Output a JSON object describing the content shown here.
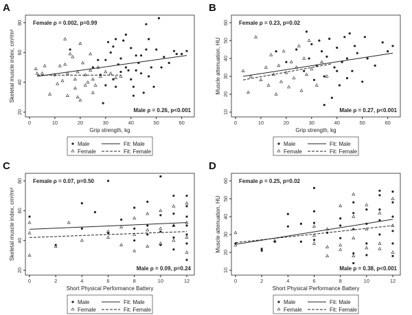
{
  "chart_data": [
    {
      "panel": "A",
      "type": "scatter",
      "xlabel": "Grip strength, kg",
      "ylabel": "Skeletal muscle index, cm²/m²",
      "xlim": [
        0,
        62
      ],
      "ylim": [
        20,
        80
      ],
      "xticks": [
        0,
        10,
        20,
        30,
        40,
        50,
        60
      ],
      "yticks": [
        20,
        40,
        60,
        80
      ],
      "female_annotation": "Female ρ = 0.002, p=0.99",
      "male_annotation": "Male ρ = 0.26, p<0.001",
      "fit_male": {
        "x": [
          3,
          62
        ],
        "y": [
          44,
          58
        ]
      },
      "fit_female": {
        "x": [
          3,
          36
        ],
        "y": [
          44.8,
          44.8
        ]
      },
      "male": [
        [
          16,
          62
        ],
        [
          25,
          50
        ],
        [
          27,
          55
        ],
        [
          29,
          26
        ],
        [
          30,
          38
        ],
        [
          31,
          67
        ],
        [
          32,
          60
        ],
        [
          33,
          64
        ],
        [
          34,
          69
        ],
        [
          35,
          52
        ],
        [
          36,
          56
        ],
        [
          37,
          68
        ],
        [
          38,
          72
        ],
        [
          39,
          48
        ],
        [
          40,
          63
        ],
        [
          41,
          31
        ],
        [
          41,
          37
        ],
        [
          42,
          58
        ],
        [
          43,
          53
        ],
        [
          44,
          46
        ],
        [
          45,
          33
        ],
        [
          46,
          79
        ],
        [
          46,
          62
        ],
        [
          47,
          69
        ],
        [
          48,
          50
        ],
        [
          49,
          37
        ],
        [
          50,
          62
        ],
        [
          51,
          83
        ],
        [
          52,
          50
        ],
        [
          53,
          57
        ],
        [
          55,
          53
        ],
        [
          57,
          61
        ],
        [
          58,
          59
        ],
        [
          60,
          59
        ],
        [
          62,
          61
        ],
        [
          28,
          45
        ],
        [
          33,
          42
        ],
        [
          36,
          47
        ],
        [
          40,
          42
        ],
        [
          44,
          58
        ],
        [
          30,
          55
        ],
        [
          34,
          37
        ],
        [
          38,
          50
        ],
        [
          42,
          48
        ],
        [
          47,
          44
        ]
      ],
      "female": [
        [
          2.5,
          49
        ],
        [
          3,
          46
        ],
        [
          5,
          46
        ],
        [
          6,
          51
        ],
        [
          8,
          32
        ],
        [
          10,
          45
        ],
        [
          11,
          39
        ],
        [
          12,
          51
        ],
        [
          13,
          41
        ],
        [
          14,
          69
        ],
        [
          14,
          52
        ],
        [
          15,
          46
        ],
        [
          15,
          31
        ],
        [
          16,
          59
        ],
        [
          17,
          57
        ],
        [
          18,
          36
        ],
        [
          19,
          30
        ],
        [
          19,
          47
        ],
        [
          20,
          66
        ],
        [
          20,
          28
        ],
        [
          21,
          53
        ],
        [
          22,
          45
        ],
        [
          23,
          40
        ],
        [
          24,
          59
        ],
        [
          25,
          42
        ],
        [
          25,
          33
        ],
        [
          26,
          38
        ],
        [
          27,
          50
        ],
        [
          28,
          44
        ],
        [
          30,
          47
        ],
        [
          32,
          46
        ],
        [
          34,
          43
        ],
        [
          36,
          44
        ],
        [
          18,
          42
        ],
        [
          22,
          38
        ],
        [
          24,
          48
        ]
      ]
    },
    {
      "panel": "B",
      "type": "scatter",
      "xlabel": "Grip strength, kg",
      "ylabel": "Muscle attenuation, HU",
      "xlim": [
        0,
        62
      ],
      "ylim": [
        10,
        60
      ],
      "xticks": [
        0,
        10,
        20,
        30,
        40,
        50,
        60
      ],
      "yticks": [
        10,
        20,
        30,
        40,
        50,
        60
      ],
      "female_annotation": "Female ρ = 0.23, p=0.02",
      "male_annotation": "Male ρ = 0.27, p<0.001",
      "fit_male": {
        "x": [
          3,
          62
        ],
        "y": [
          30,
          43
        ]
      },
      "fit_female": {
        "x": [
          3,
          38
        ],
        "y": [
          28,
          37
        ]
      },
      "male": [
        [
          16,
          44
        ],
        [
          20,
          38
        ],
        [
          24,
          45
        ],
        [
          27,
          33
        ],
        [
          28,
          55
        ],
        [
          29,
          40
        ],
        [
          30,
          48
        ],
        [
          31,
          28
        ],
        [
          32,
          36
        ],
        [
          33,
          50
        ],
        [
          34,
          44
        ],
        [
          35,
          30
        ],
        [
          36,
          41
        ],
        [
          37,
          51
        ],
        [
          38,
          18
        ],
        [
          39,
          35
        ],
        [
          40,
          46
        ],
        [
          41,
          25
        ],
        [
          42,
          38
        ],
        [
          43,
          52
        ],
        [
          44,
          40
        ],
        [
          45,
          54
        ],
        [
          46,
          33
        ],
        [
          47,
          47
        ],
        [
          48,
          43
        ],
        [
          50,
          27
        ],
        [
          51,
          52
        ],
        [
          52,
          40
        ],
        [
          55,
          36
        ],
        [
          58,
          49
        ],
        [
          60,
          44
        ],
        [
          62,
          47
        ],
        [
          35,
          14
        ],
        [
          40,
          33
        ],
        [
          44,
          29
        ]
      ],
      "female": [
        [
          3,
          33
        ],
        [
          5,
          21
        ],
        [
          6,
          30
        ],
        [
          8,
          52
        ],
        [
          10,
          28
        ],
        [
          12,
          35
        ],
        [
          13,
          25
        ],
        [
          14,
          42
        ],
        [
          15,
          31
        ],
        [
          16,
          20
        ],
        [
          17,
          36
        ],
        [
          18,
          27
        ],
        [
          19,
          44
        ],
        [
          20,
          32
        ],
        [
          21,
          24
        ],
        [
          22,
          38
        ],
        [
          23,
          29
        ],
        [
          24,
          35
        ],
        [
          25,
          47
        ],
        [
          26,
          22
        ],
        [
          27,
          40
        ],
        [
          28,
          31
        ],
        [
          29,
          50
        ],
        [
          30,
          34
        ],
        [
          32,
          25
        ],
        [
          34,
          38
        ],
        [
          36,
          30
        ]
      ]
    },
    {
      "panel": "C",
      "type": "scatter",
      "xlabel": "Short Physical Performance Battery",
      "ylabel": "Skeletal muscle index, cm²/m²",
      "xlim": [
        0,
        12
      ],
      "ylim": [
        20,
        80
      ],
      "xticks": [
        0,
        2,
        4,
        6,
        8,
        10,
        12
      ],
      "yticks": [
        20,
        40,
        60,
        80
      ],
      "female_annotation": "Female ρ = 0.07, p=0.50",
      "male_annotation": "Male ρ = 0.09, p=0.24",
      "fit_male": {
        "x": [
          0,
          12
        ],
        "y": [
          47.5,
          52
        ]
      },
      "fit_female": {
        "x": [
          0,
          12
        ],
        "y": [
          42,
          46
        ]
      },
      "male": [
        [
          0,
          56
        ],
        [
          2,
          37
        ],
        [
          4,
          65
        ],
        [
          4,
          48
        ],
        [
          5,
          59
        ],
        [
          6,
          80
        ],
        [
          6,
          45
        ],
        [
          7,
          54
        ],
        [
          8,
          62
        ],
        [
          8,
          48
        ],
        [
          8,
          40
        ],
        [
          9,
          66
        ],
        [
          9,
          50
        ],
        [
          9,
          44
        ],
        [
          10,
          83
        ],
        [
          10,
          57
        ],
        [
          10,
          46
        ],
        [
          10,
          37
        ],
        [
          11,
          70
        ],
        [
          11,
          58
        ],
        [
          11,
          50
        ],
        [
          11,
          42
        ],
        [
          11,
          34
        ],
        [
          12,
          70
        ],
        [
          12,
          63
        ],
        [
          12,
          56
        ],
        [
          12,
          50
        ],
        [
          12,
          44
        ],
        [
          12,
          38
        ],
        [
          12,
          27
        ]
      ],
      "female": [
        [
          0,
          45
        ],
        [
          0,
          30
        ],
        [
          0,
          52
        ],
        [
          2,
          36
        ],
        [
          3,
          52
        ],
        [
          4,
          40
        ],
        [
          6,
          46
        ],
        [
          6,
          42
        ],
        [
          7,
          49
        ],
        [
          7,
          37
        ],
        [
          8,
          55
        ],
        [
          8,
          44
        ],
        [
          8,
          33
        ],
        [
          9,
          58
        ],
        [
          9,
          47
        ],
        [
          9,
          36
        ],
        [
          10,
          60
        ],
        [
          10,
          48
        ],
        [
          10,
          38
        ],
        [
          11,
          63
        ],
        [
          11,
          50
        ],
        [
          11,
          40
        ],
        [
          12,
          65
        ],
        [
          12,
          52
        ],
        [
          12,
          42
        ],
        [
          12,
          32
        ]
      ]
    },
    {
      "panel": "D",
      "type": "scatter",
      "xlabel": "Short Physical Performance Battery",
      "ylabel": "Muscle attenuation, HU",
      "xlim": [
        0,
        12
      ],
      "ylim": [
        10,
        60
      ],
      "xticks": [
        0,
        2,
        4,
        6,
        8,
        10,
        12
      ],
      "yticks": [
        10,
        20,
        30,
        40,
        50,
        60
      ],
      "female_annotation": "Female ρ = 0.25, p=0.02",
      "male_annotation": "Male ρ = 0.38, p<0.001",
      "fit_male": {
        "x": [
          0,
          12
        ],
        "y": [
          24.5,
          38.5
        ]
      },
      "fit_female": {
        "x": [
          0,
          12
        ],
        "y": [
          25.5,
          35
        ]
      },
      "male": [
        [
          0,
          25
        ],
        [
          2,
          22
        ],
        [
          2,
          21
        ],
        [
          3,
          26
        ],
        [
          4,
          41.5
        ],
        [
          4,
          34.5
        ],
        [
          5,
          36
        ],
        [
          5,
          26
        ],
        [
          6,
          56
        ],
        [
          6,
          43
        ],
        [
          6,
          36.5
        ],
        [
          6,
          27
        ],
        [
          7,
          31
        ],
        [
          8,
          39
        ],
        [
          8,
          35
        ],
        [
          8,
          28
        ],
        [
          9,
          48
        ],
        [
          9,
          42
        ],
        [
          9,
          33
        ],
        [
          9,
          19.5
        ],
        [
          9,
          14
        ],
        [
          10,
          44
        ],
        [
          10,
          36
        ],
        [
          10,
          25
        ],
        [
          10,
          18.5
        ],
        [
          11,
          54.5
        ],
        [
          11,
          52
        ],
        [
          11,
          44
        ],
        [
          11,
          38
        ],
        [
          11,
          30
        ],
        [
          12,
          54
        ],
        [
          12,
          48
        ],
        [
          12,
          40
        ],
        [
          12,
          32
        ],
        [
          12,
          25
        ],
        [
          12,
          18
        ]
      ],
      "female": [
        [
          0,
          31
        ],
        [
          0,
          24
        ],
        [
          3,
          26.5
        ],
        [
          6,
          34.5
        ],
        [
          6,
          29.5
        ],
        [
          6,
          25
        ],
        [
          7,
          33
        ],
        [
          7,
          23
        ],
        [
          7,
          18
        ],
        [
          8,
          46
        ],
        [
          8,
          24
        ],
        [
          8,
          21.5
        ],
        [
          9,
          52.5
        ],
        [
          9,
          40
        ],
        [
          9,
          28
        ],
        [
          9,
          18
        ],
        [
          10,
          46.5
        ],
        [
          10,
          33
        ],
        [
          10,
          22.5
        ],
        [
          11,
          42
        ],
        [
          11,
          25
        ],
        [
          11,
          22
        ],
        [
          12,
          50
        ],
        [
          12,
          35
        ],
        [
          12,
          20
        ]
      ]
    }
  ],
  "legend": {
    "male": "Male",
    "female": "Female",
    "fit_male": "Fit: Male",
    "fit_female": "Fit: Female"
  },
  "colors": {
    "ink": "#222222"
  }
}
